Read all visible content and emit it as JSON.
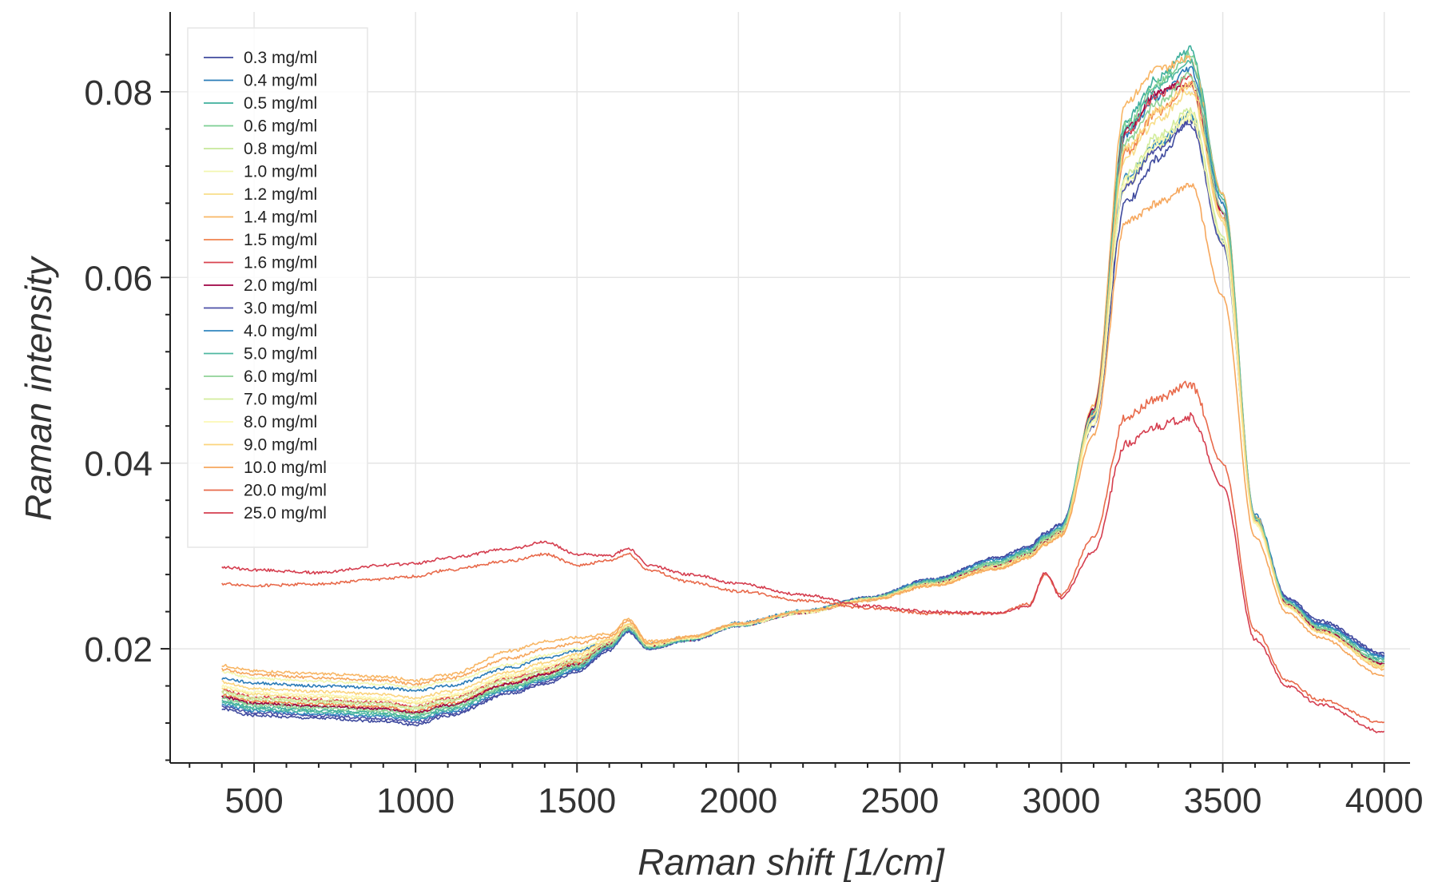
{
  "chart_data": {
    "type": "line",
    "xlabel": "Raman shift [1/cm]",
    "ylabel": "Raman intensity",
    "xlim": [
      240,
      4080
    ],
    "ylim": [
      0.0077,
      0.0886
    ],
    "x_ticks": [
      500,
      1000,
      1500,
      2000,
      2500,
      3000,
      3500,
      4000
    ],
    "x_tick_labels": [
      "500",
      "1000",
      "1500",
      "2000",
      "2500",
      "3000",
      "3500",
      "4000"
    ],
    "y_ticks": [
      0.02,
      0.04,
      0.06,
      0.08
    ],
    "y_tick_labels": [
      "0.02",
      "0.04",
      "0.06",
      "0.08"
    ],
    "grid": true,
    "legend_position": "top-left",
    "x": [
      400,
      500,
      700,
      900,
      1000,
      1100,
      1300,
      1400,
      1500,
      1600,
      1660,
      1720,
      1850,
      2000,
      2200,
      2400,
      2600,
      2800,
      2900,
      2950,
      3000,
      3100,
      3200,
      3300,
      3400,
      3500,
      3600,
      3700,
      3800,
      4000
    ],
    "series": [
      {
        "name": "0.3 mg/ml",
        "color": "#3f4a9e",
        "values": [
          0.0135,
          0.0128,
          0.0125,
          0.0122,
          0.0118,
          0.0128,
          0.0152,
          0.0162,
          0.0175,
          0.0198,
          0.0218,
          0.02,
          0.021,
          0.0225,
          0.024,
          0.0255,
          0.0275,
          0.0298,
          0.031,
          0.0325,
          0.0335,
          0.044,
          0.068,
          0.0728,
          0.077,
          0.064,
          0.034,
          0.0255,
          0.023,
          0.0195
        ]
      },
      {
        "name": "0.4 mg/ml",
        "color": "#2a7bb8",
        "values": [
          0.0168,
          0.0163,
          0.016,
          0.0158,
          0.0155,
          0.016,
          0.018,
          0.019,
          0.0198,
          0.0208,
          0.0225,
          0.0205,
          0.0212,
          0.0228,
          0.0241,
          0.0254,
          0.0271,
          0.0291,
          0.0303,
          0.0317,
          0.0327,
          0.0455,
          0.0755,
          0.0795,
          0.0825,
          0.068,
          0.0345,
          0.0253,
          0.0226,
          0.0192
        ]
      },
      {
        "name": "0.5 mg/ml",
        "color": "#3eaf9c",
        "values": [
          0.0143,
          0.0137,
          0.0134,
          0.0131,
          0.0127,
          0.0136,
          0.0159,
          0.0169,
          0.0181,
          0.0203,
          0.0222,
          0.0202,
          0.0211,
          0.0226,
          0.024,
          0.0254,
          0.0272,
          0.0293,
          0.0305,
          0.032,
          0.033,
          0.0458,
          0.077,
          0.0815,
          0.0845,
          0.069,
          0.0342,
          0.025,
          0.0222,
          0.0186
        ]
      },
      {
        "name": "0.6 mg/ml",
        "color": "#7ccf93",
        "values": [
          0.0148,
          0.0141,
          0.0138,
          0.0135,
          0.0131,
          0.0139,
          0.0162,
          0.0172,
          0.0184,
          0.0205,
          0.0223,
          0.0203,
          0.0211,
          0.0226,
          0.024,
          0.0254,
          0.0271,
          0.0291,
          0.0303,
          0.0318,
          0.0328,
          0.0456,
          0.0765,
          0.081,
          0.084,
          0.0688,
          0.0341,
          0.0249,
          0.0221,
          0.0184
        ]
      },
      {
        "name": "0.8 mg/ml",
        "color": "#c7e89a",
        "values": [
          0.0152,
          0.0145,
          0.0142,
          0.0139,
          0.0135,
          0.0143,
          0.0165,
          0.0175,
          0.0186,
          0.0206,
          0.0224,
          0.0203,
          0.0211,
          0.0226,
          0.0239,
          0.0253,
          0.027,
          0.0289,
          0.0301,
          0.0316,
          0.0326,
          0.0445,
          0.0705,
          0.0745,
          0.0775,
          0.064,
          0.0336,
          0.0246,
          0.0219,
          0.0182
        ]
      },
      {
        "name": "1.0 mg/ml",
        "color": "#f3f6b0",
        "values": [
          0.0175,
          0.0168,
          0.0165,
          0.0162,
          0.0158,
          0.0165,
          0.0183,
          0.0193,
          0.02,
          0.021,
          0.0227,
          0.0205,
          0.0212,
          0.0227,
          0.024,
          0.0253,
          0.0269,
          0.0287,
          0.0299,
          0.0313,
          0.0323,
          0.0442,
          0.07,
          0.0742,
          0.077,
          0.0636,
          0.0334,
          0.0245,
          0.0218,
          0.018
        ]
      },
      {
        "name": "1.2 mg/ml",
        "color": "#f8de8a",
        "values": [
          0.0158,
          0.0151,
          0.0148,
          0.0145,
          0.0141,
          0.0148,
          0.017,
          0.018,
          0.019,
          0.0208,
          0.0226,
          0.0204,
          0.0211,
          0.0226,
          0.0239,
          0.0253,
          0.027,
          0.0288,
          0.03,
          0.0315,
          0.0325,
          0.045,
          0.073,
          0.077,
          0.08,
          0.066,
          0.0338,
          0.0247,
          0.0219,
          0.0181
        ]
      },
      {
        "name": "1.4 mg/ml",
        "color": "#f8b665",
        "values": [
          0.0182,
          0.0176,
          0.0173,
          0.017,
          0.0166,
          0.0172,
          0.0198,
          0.0208,
          0.0212,
          0.0216,
          0.0232,
          0.0208,
          0.0213,
          0.0227,
          0.024,
          0.0252,
          0.0268,
          0.0286,
          0.0298,
          0.0312,
          0.0322,
          0.0462,
          0.079,
          0.0825,
          0.0835,
          0.069,
          0.0343,
          0.0248,
          0.0218,
          0.0178
        ]
      },
      {
        "name": "1.5 mg/ml",
        "color": "#f0834d",
        "values": [
          0.015,
          0.0143,
          0.014,
          0.0137,
          0.0133,
          0.0141,
          0.0163,
          0.0173,
          0.0185,
          0.0205,
          0.0224,
          0.0203,
          0.0211,
          0.0226,
          0.0239,
          0.0253,
          0.027,
          0.0289,
          0.0301,
          0.0316,
          0.0326,
          0.045,
          0.0735,
          0.0778,
          0.0808,
          0.0665,
          0.0339,
          0.0248,
          0.022,
          0.0183
        ]
      },
      {
        "name": "1.6 mg/ml",
        "color": "#d9434f",
        "values": [
          0.0155,
          0.0148,
          0.0145,
          0.0142,
          0.0138,
          0.0146,
          0.0168,
          0.0178,
          0.0188,
          0.0207,
          0.0225,
          0.0204,
          0.0211,
          0.0226,
          0.0239,
          0.0253,
          0.027,
          0.0289,
          0.0301,
          0.0316,
          0.0326,
          0.0455,
          0.0755,
          0.0798,
          0.0815,
          0.0672,
          0.034,
          0.0248,
          0.022,
          0.0183
        ]
      },
      {
        "name": "2.0 mg/ml",
        "color": "#9e0142",
        "values": [
          0.0148,
          0.0141,
          0.0138,
          0.0135,
          0.0131,
          0.0139,
          0.0163,
          0.0173,
          0.0183,
          0.0204,
          0.0222,
          0.0202,
          0.021,
          0.0225,
          0.0239,
          0.0253,
          0.027,
          0.0289,
          0.0301,
          0.0316,
          0.0326,
          0.0458,
          0.076,
          0.08,
          0.081,
          0.067,
          0.034,
          0.0248,
          0.022,
          0.0184
        ]
      },
      {
        "name": "3.0 mg/ml",
        "color": "#4b4fa6",
        "values": [
          0.0138,
          0.0131,
          0.0128,
          0.0125,
          0.0121,
          0.013,
          0.0154,
          0.0164,
          0.0177,
          0.02,
          0.0219,
          0.02,
          0.0209,
          0.0225,
          0.024,
          0.0255,
          0.0275,
          0.0297,
          0.0309,
          0.0324,
          0.0334,
          0.0448,
          0.07,
          0.074,
          0.0765,
          0.0635,
          0.0339,
          0.0254,
          0.0228,
          0.0193
        ]
      },
      {
        "name": "4.0 mg/ml",
        "color": "#3186bf",
        "values": [
          0.014,
          0.0133,
          0.013,
          0.0127,
          0.0123,
          0.0132,
          0.0156,
          0.0166,
          0.0178,
          0.0201,
          0.022,
          0.0201,
          0.021,
          0.0225,
          0.024,
          0.0255,
          0.0274,
          0.0296,
          0.0308,
          0.0323,
          0.0333,
          0.045,
          0.0708,
          0.0745,
          0.0775,
          0.064,
          0.034,
          0.0252,
          0.0226,
          0.0191
        ]
      },
      {
        "name": "5.0 mg/ml",
        "color": "#4fb8a0",
        "values": [
          0.0142,
          0.0135,
          0.0132,
          0.0129,
          0.0125,
          0.0134,
          0.0158,
          0.0168,
          0.018,
          0.0202,
          0.0221,
          0.0201,
          0.021,
          0.0225,
          0.024,
          0.0254,
          0.0273,
          0.0294,
          0.0306,
          0.0321,
          0.0331,
          0.0455,
          0.076,
          0.0805,
          0.0835,
          0.0685,
          0.0342,
          0.0251,
          0.0224,
          0.0189
        ]
      },
      {
        "name": "6.0 mg/ml",
        "color": "#8fd297",
        "values": [
          0.0146,
          0.0139,
          0.0136,
          0.0133,
          0.0129,
          0.0137,
          0.016,
          0.017,
          0.0182,
          0.0204,
          0.0222,
          0.0202,
          0.0211,
          0.0226,
          0.024,
          0.0254,
          0.0272,
          0.0292,
          0.0304,
          0.0319,
          0.0329,
          0.0452,
          0.0745,
          0.0788,
          0.0818,
          0.0672,
          0.034,
          0.025,
          0.0222,
          0.0186
        ]
      },
      {
        "name": "7.0 mg/ml",
        "color": "#d3ec9c",
        "values": [
          0.0154,
          0.0147,
          0.0144,
          0.0141,
          0.0137,
          0.0145,
          0.0167,
          0.0177,
          0.0188,
          0.0207,
          0.0225,
          0.0204,
          0.0211,
          0.0226,
          0.0239,
          0.0253,
          0.027,
          0.0289,
          0.0301,
          0.0316,
          0.0326,
          0.0446,
          0.0712,
          0.0752,
          0.0782,
          0.0645,
          0.0336,
          0.0246,
          0.0219,
          0.0182
        ]
      },
      {
        "name": "8.0 mg/ml",
        "color": "#fbf8b4",
        "values": [
          0.016,
          0.0153,
          0.015,
          0.0147,
          0.0143,
          0.015,
          0.0172,
          0.0182,
          0.0192,
          0.0209,
          0.0226,
          0.0204,
          0.0211,
          0.0226,
          0.0239,
          0.0253,
          0.0269,
          0.0287,
          0.0299,
          0.0313,
          0.0323,
          0.0444,
          0.0705,
          0.0746,
          0.0775,
          0.064,
          0.0335,
          0.0245,
          0.0218,
          0.018
        ]
      },
      {
        "name": "9.0 mg/ml",
        "color": "#fbd47e",
        "values": [
          0.0164,
          0.0157,
          0.0154,
          0.0151,
          0.0147,
          0.0154,
          0.0175,
          0.0185,
          0.0194,
          0.021,
          0.0227,
          0.0205,
          0.0212,
          0.0227,
          0.024,
          0.0253,
          0.0269,
          0.0287,
          0.0299,
          0.0313,
          0.0323,
          0.0452,
          0.074,
          0.078,
          0.0808,
          0.0665,
          0.0338,
          0.0246,
          0.0218,
          0.018
        ]
      },
      {
        "name": "10.0 mg/ml",
        "color": "#f6a75d",
        "values": [
          0.0178,
          0.0172,
          0.0169,
          0.0166,
          0.0162,
          0.0168,
          0.019,
          0.02,
          0.0206,
          0.0213,
          0.023,
          0.0206,
          0.0213,
          0.0227,
          0.024,
          0.0252,
          0.0268,
          0.0286,
          0.0298,
          0.0312,
          0.0322,
          0.043,
          0.066,
          0.068,
          0.07,
          0.058,
          0.032,
          0.0238,
          0.0212,
          0.017
        ]
      },
      {
        "name": "20.0 mg/ml",
        "color": "#e8694a",
        "values": [
          0.027,
          0.0268,
          0.027,
          0.0275,
          0.0278,
          0.0285,
          0.0295,
          0.0302,
          0.029,
          0.0295,
          0.0302,
          0.0285,
          0.0272,
          0.0262,
          0.0252,
          0.0244,
          0.0238,
          0.0238,
          0.0248,
          0.028,
          0.0258,
          0.032,
          0.045,
          0.047,
          0.0485,
          0.04,
          0.022,
          0.0165,
          0.0145,
          0.012
        ]
      },
      {
        "name": "25.0 mg/ml",
        "color": "#d53e4f",
        "values": [
          0.0288,
          0.0285,
          0.0282,
          0.029,
          0.0292,
          0.0298,
          0.0308,
          0.0315,
          0.0302,
          0.03,
          0.0308,
          0.029,
          0.028,
          0.027,
          0.0258,
          0.0246,
          0.024,
          0.0238,
          0.0246,
          0.0282,
          0.0255,
          0.0305,
          0.042,
          0.044,
          0.045,
          0.0375,
          0.021,
          0.016,
          0.014,
          0.011
        ]
      }
    ]
  }
}
